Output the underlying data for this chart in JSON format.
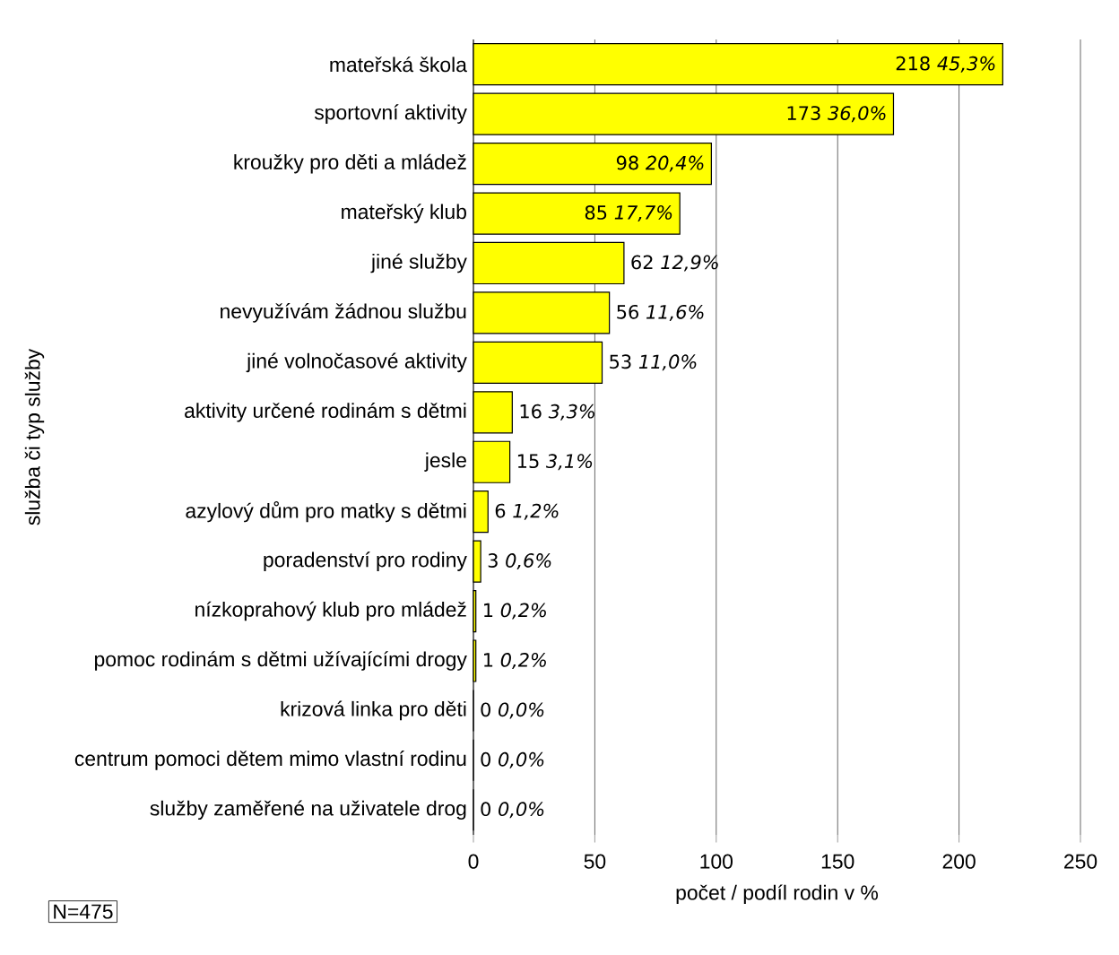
{
  "chart_data": {
    "type": "bar",
    "orientation": "horizontal",
    "ylabel": "služba či typ služby",
    "xlabel": "počet / podíl rodin v %",
    "categories": [
      "mateřská škola",
      "sportovní aktivity",
      "kroužky pro děti a mládež",
      "mateřský klub",
      "jiné služby",
      "nevyužívám žádnou službu",
      "jiné volnočasové aktivity",
      "aktivity určené rodinám s dětmi",
      "jesle",
      "azylový dům pro matky s dětmi",
      "poradenství pro rodiny",
      "nízkoprahový klub pro mládež",
      "pomoc rodinám s dětmi užívajícími drogy",
      "krizová linka pro děti",
      "centrum pomoci dětem mimo vlastní rodinu",
      "služby zaměřené na uživatele drog"
    ],
    "values": [
      218,
      173,
      98,
      85,
      62,
      56,
      53,
      16,
      15,
      6,
      3,
      1,
      1,
      0,
      0,
      0
    ],
    "value_labels": [
      "218  *45,3%*",
      "173  *36,0%*",
      "98  *20,4%*",
      "85  *17,7%*",
      "62  *12,9%*",
      "56  *11,6%*",
      "53  *11,0%*",
      "16  *3,3%*",
      "15  *3,1%*",
      "6  *1,2%*",
      "3  *0,6%*",
      "1  *0,2%*",
      "1  *0,2%*",
      "0  *0,0%*",
      "0  *0,0%*",
      "0  *0,0%*"
    ],
    "color": "#ffff00",
    "xlim": [
      0,
      250
    ],
    "xticks": [
      0,
      50,
      100,
      150,
      200,
      250
    ],
    "grid": "x",
    "annotations": [
      "N=475"
    ]
  }
}
